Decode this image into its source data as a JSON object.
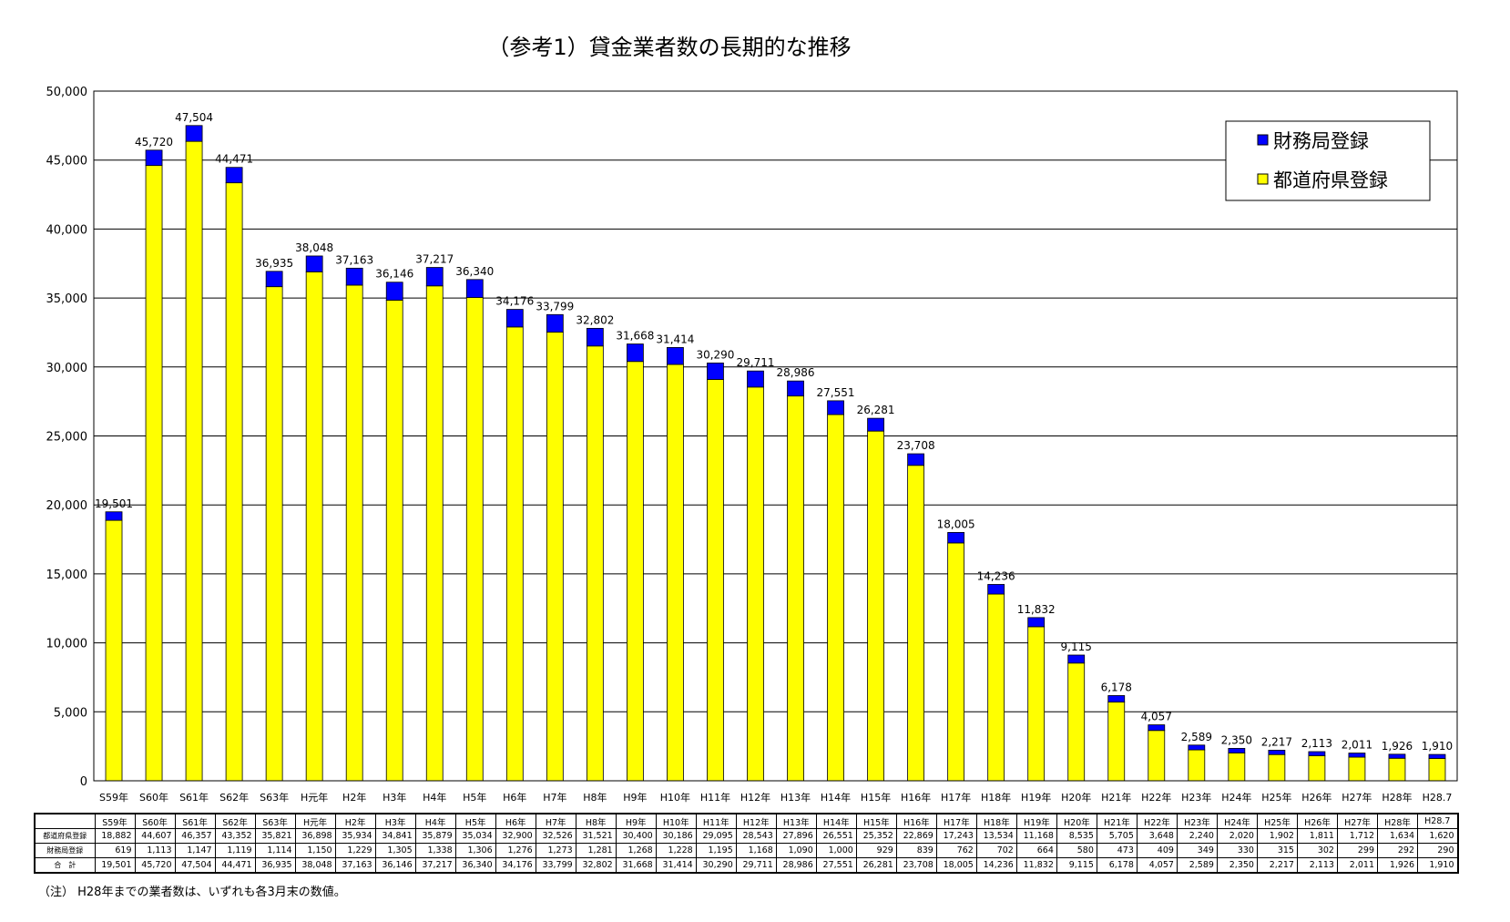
{
  "chart_data": {
    "type": "bar",
    "stacked": true,
    "title": "（参考1）貸金業者数の長期的な推移",
    "categories": [
      "S59年",
      "S60年",
      "S61年",
      "S62年",
      "S63年",
      "H元年",
      "H2年",
      "H3年",
      "H4年",
      "H5年",
      "H6年",
      "H7年",
      "H8年",
      "H9年",
      "H10年",
      "H11年",
      "H12年",
      "H13年",
      "H14年",
      "H15年",
      "H16年",
      "H17年",
      "H18年",
      "H19年",
      "H20年",
      "H21年",
      "H22年",
      "H23年",
      "H24年",
      "H25年",
      "H26年",
      "H27年",
      "H28年",
      "H28.7"
    ],
    "series": [
      {
        "name": "都道府県登録",
        "color": "#ffff00",
        "values": [
          18882,
          44607,
          46357,
          43352,
          35821,
          36898,
          35934,
          34841,
          35879,
          35034,
          32900,
          32526,
          31521,
          30400,
          30186,
          29095,
          28543,
          27896,
          26551,
          25352,
          22869,
          17243,
          13534,
          11168,
          8535,
          5705,
          3648,
          2240,
          2020,
          1902,
          1811,
          1712,
          1634,
          1620
        ]
      },
      {
        "name": "財務局登録",
        "color": "#0000ff",
        "values": [
          619,
          1113,
          1147,
          1119,
          1114,
          1150,
          1229,
          1305,
          1338,
          1306,
          1276,
          1273,
          1281,
          1268,
          1228,
          1195,
          1168,
          1090,
          1000,
          929,
          839,
          762,
          702,
          664,
          580,
          473,
          409,
          349,
          330,
          315,
          302,
          299,
          292,
          290
        ]
      }
    ],
    "totals": [
      19501,
      45720,
      47504,
      44471,
      36935,
      38048,
      37163,
      36146,
      37217,
      36340,
      34176,
      33799,
      32802,
      31668,
      31414,
      30290,
      29711,
      28986,
      27551,
      26281,
      23708,
      18005,
      14236,
      11832,
      9115,
      6178,
      4057,
      2589,
      2350,
      2217,
      2113,
      2011,
      1926,
      1910
    ],
    "total_labels": [
      "19,501",
      "45,720",
      "47,504",
      "44,471",
      "36,935",
      "38,048",
      "37,163",
      "36,146",
      "37,217",
      "36,340",
      "34,176",
      "33,799",
      "32,802",
      "31,668",
      "31,414",
      "30,290",
      "29,711",
      "28,986",
      "27,551",
      "26,281",
      "23,708",
      "18,005",
      "14,236",
      "11,832",
      "9,115",
      "6,178",
      "4,057",
      "2,589",
      "2,350",
      "2,217",
      "2,113",
      "2,011",
      "1,926",
      "1,910"
    ],
    "ylim": [
      0,
      50000
    ],
    "yticks": [
      "0",
      "5,000",
      "10,000",
      "15,000",
      "20,000",
      "25,000",
      "30,000",
      "35,000",
      "40,000",
      "45,000",
      "50,000"
    ],
    "grid": true,
    "legend_position": "top-right",
    "xlabel": "",
    "ylabel": ""
  },
  "table": {
    "row_labels": [
      "都道府県登録",
      "財務局登録",
      "合　計"
    ],
    "prefecture": [
      "18,882",
      "44,607",
      "46,357",
      "43,352",
      "35,821",
      "36,898",
      "35,934",
      "34,841",
      "35,879",
      "35,034",
      "32,900",
      "32,526",
      "31,521",
      "30,400",
      "30,186",
      "29,095",
      "28,543",
      "27,896",
      "26,551",
      "25,352",
      "22,869",
      "17,243",
      "13,534",
      "11,168",
      "8,535",
      "5,705",
      "3,648",
      "2,240",
      "2,020",
      "1,902",
      "1,811",
      "1,712",
      "1,634",
      "1,620"
    ],
    "bureau": [
      "619",
      "1,113",
      "1,147",
      "1,119",
      "1,114",
      "1,150",
      "1,229",
      "1,305",
      "1,338",
      "1,306",
      "1,276",
      "1,273",
      "1,281",
      "1,268",
      "1,228",
      "1,195",
      "1,168",
      "1,090",
      "1,000",
      "929",
      "839",
      "762",
      "702",
      "664",
      "580",
      "473",
      "409",
      "349",
      "330",
      "315",
      "302",
      "299",
      "292",
      "290"
    ],
    "total": [
      "19,501",
      "45,720",
      "47,504",
      "44,471",
      "36,935",
      "38,048",
      "37,163",
      "36,146",
      "37,217",
      "36,340",
      "34,176",
      "33,799",
      "32,802",
      "31,668",
      "31,414",
      "30,290",
      "29,711",
      "28,986",
      "27,551",
      "26,281",
      "23,708",
      "18,005",
      "14,236",
      "11,832",
      "9,115",
      "6,178",
      "4,057",
      "2,589",
      "2,350",
      "2,217",
      "2,113",
      "2,011",
      "1,926",
      "1,910"
    ]
  },
  "note": "（注） H28年までの業者数は、いずれも各3月末の数値。"
}
